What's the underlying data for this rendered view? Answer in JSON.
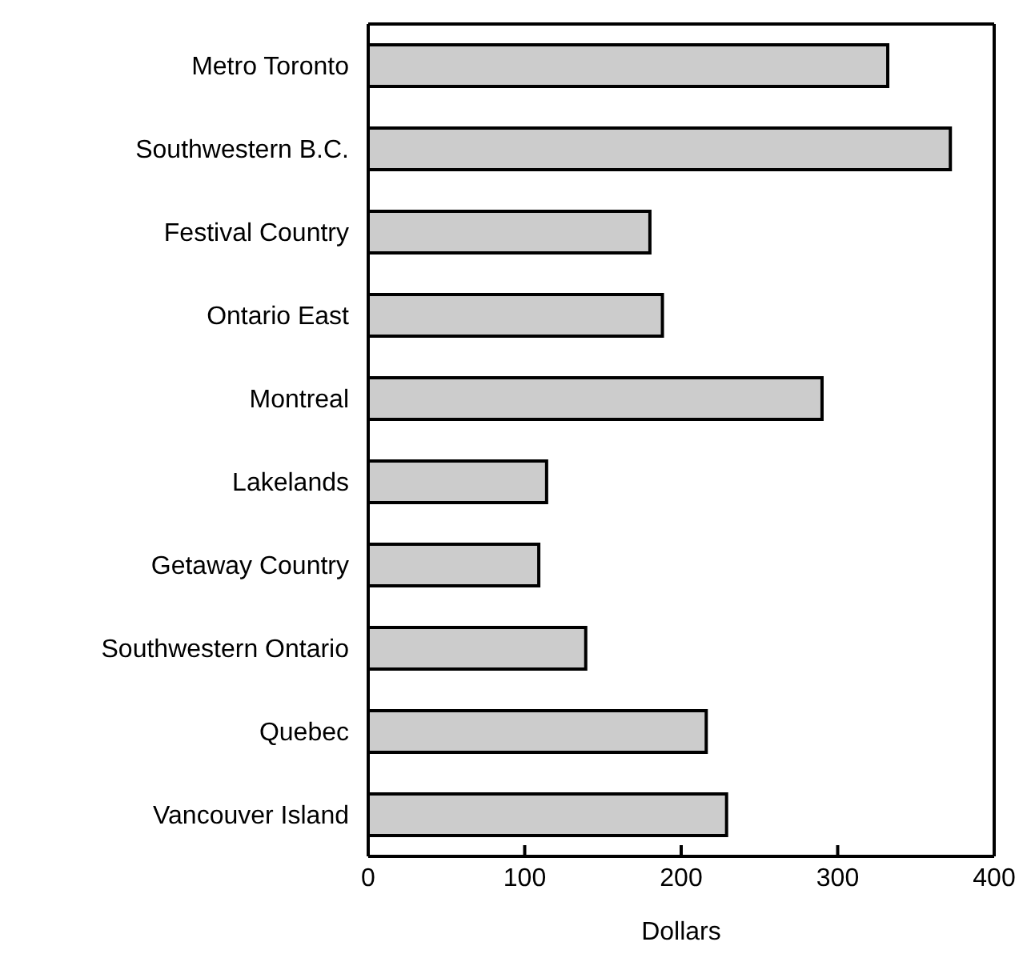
{
  "chart_data": {
    "type": "bar",
    "orientation": "horizontal",
    "xlabel": "Dollars",
    "categories": [
      "Metro Toronto",
      "Southwestern B.C.",
      "Festival Country",
      "Ontario East",
      "Montreal",
      "Lakelands",
      "Getaway Country",
      "Southwestern Ontario",
      "Quebec",
      "Vancouver Island"
    ],
    "values": [
      332,
      372,
      180,
      188,
      290,
      114,
      109,
      139,
      216,
      229
    ],
    "color": "#cccccc",
    "xlim": [
      0,
      400
    ],
    "xticks": [
      0,
      100,
      200,
      300,
      400
    ],
    "grid": false,
    "legend": false
  }
}
